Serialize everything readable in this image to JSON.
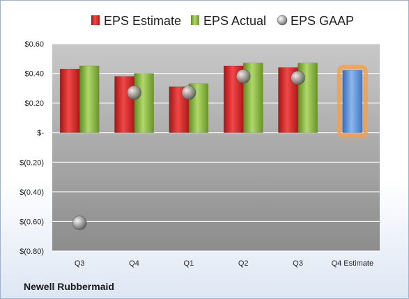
{
  "chart_data": {
    "type": "bar",
    "company": "Newell Rubbermaid",
    "categories": [
      "Q3",
      "Q4",
      "Q1",
      "Q2",
      "Q3",
      "Q4 Estimate"
    ],
    "series": [
      {
        "name": "EPS Estimate",
        "type": "bar",
        "color": "#d42a2a",
        "values": [
          0.43,
          0.38,
          0.31,
          0.45,
          0.44,
          null
        ]
      },
      {
        "name": "EPS Actual",
        "type": "bar",
        "color": "#8dbb3b",
        "values": [
          0.45,
          0.4,
          0.33,
          0.47,
          0.47,
          null
        ]
      },
      {
        "name": "EPS GAAP",
        "type": "scatter",
        "color": "#9a9a9a",
        "values": [
          -0.61,
          0.27,
          0.27,
          0.38,
          0.37,
          null
        ]
      },
      {
        "name": "",
        "type": "bar",
        "color": "#5d8fd6",
        "highlight": "#f5a04a",
        "values": [
          null,
          null,
          null,
          null,
          null,
          0.42
        ]
      }
    ],
    "ylim": [
      -0.8,
      0.6
    ],
    "yticks": [
      0.6,
      0.4,
      0.2,
      0,
      -0.2,
      -0.4,
      -0.6,
      -0.8
    ],
    "ytick_labels": [
      "$0.60",
      "$0.40",
      "$0.20",
      "$-",
      "$(0.20)",
      "$(0.40)",
      "$(0.60)",
      "$(0.80)"
    ],
    "grid": true,
    "legend_position": "top"
  }
}
